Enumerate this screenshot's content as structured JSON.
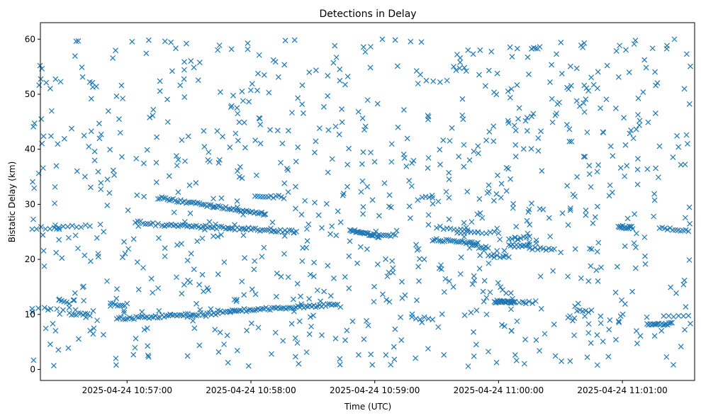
{
  "chart_data": {
    "type": "scatter",
    "title": "Detections in Delay",
    "xlabel": "Time (UTC)",
    "ylabel": "Bistatic Delay (km)",
    "x_ticks": [
      "2025-04-24 10:57:00",
      "2025-04-24 10:58:00",
      "2025-04-24 10:59:00",
      "2025-04-24 11:00:00",
      "2025-04-24 11:01:00"
    ],
    "y_ticks": [
      0,
      10,
      20,
      30,
      40,
      50,
      60
    ],
    "xlim": [
      "2025-04-24 10:56:18",
      "2025-04-24 11:01:35"
    ],
    "ylim": [
      -2,
      63
    ],
    "marker": "x",
    "color": "#1f77b4",
    "grid": false,
    "series": [
      {
        "tracks": [
          {
            "t_start": "2025-04-24 10:56:14",
            "t_end": "2025-04-24 10:56:35",
            "y_start": 11,
            "y_end": 11,
            "count": 8
          },
          {
            "t_start": "2025-04-24 10:56:27",
            "t_end": "2025-04-24 10:56:32",
            "y_start": 12.5,
            "y_end": 12.2,
            "count": 5
          },
          {
            "t_start": "2025-04-24 10:56:32",
            "t_end": "2025-04-24 10:56:42",
            "y_start": 10,
            "y_end": 10,
            "count": 10
          },
          {
            "t_start": "2025-04-24 10:56:14",
            "t_end": "2025-04-24 10:56:42",
            "y_start": 25.6,
            "y_end": 26.2,
            "count": 14
          },
          {
            "t_start": "2025-04-24 10:56:52",
            "t_end": "2025-04-24 10:57:00",
            "y_start": 11.8,
            "y_end": 11.8,
            "count": 8
          },
          {
            "t_start": "2025-04-24 10:56:55",
            "t_end": "2025-04-24 10:57:44",
            "y_start": 9.2,
            "y_end": 10.2,
            "count": 48
          },
          {
            "t_start": "2025-04-24 10:57:04",
            "t_end": "2025-04-24 10:57:15",
            "y_start": 26.8,
            "y_end": 26.3,
            "count": 10
          },
          {
            "t_start": "2025-04-24 10:57:15",
            "t_end": "2025-04-24 10:58:07",
            "y_start": 31.2,
            "y_end": 28.2,
            "count": 58
          },
          {
            "t_start": "2025-04-24 10:57:17",
            "t_end": "2025-04-24 10:58:22",
            "y_start": 26.3,
            "y_end": 25,
            "count": 60
          },
          {
            "t_start": "2025-04-24 10:58:02",
            "t_end": "2025-04-24 10:58:16",
            "y_start": 31.5,
            "y_end": 31.3,
            "count": 12
          },
          {
            "t_start": "2025-04-24 10:57:44",
            "t_end": "2025-04-24 10:57:50",
            "y_start": 10.5,
            "y_end": 10.5,
            "count": 6
          },
          {
            "t_start": "2025-04-24 10:57:50",
            "t_end": "2025-04-24 10:58:42",
            "y_start": 10.6,
            "y_end": 11.8,
            "count": 55
          },
          {
            "t_start": "2025-04-24 10:58:48",
            "t_end": "2025-04-24 10:59:02",
            "y_start": 25.3,
            "y_end": 24.2,
            "count": 25
          },
          {
            "t_start": "2025-04-24 10:59:02",
            "t_end": "2025-04-24 10:59:10",
            "y_start": 24.6,
            "y_end": 24.3,
            "count": 8
          },
          {
            "t_start": "2025-04-24 10:59:25",
            "t_end": "2025-04-24 10:59:35",
            "y_start": 52.5,
            "y_end": 52.3,
            "count": 4
          },
          {
            "t_start": "2025-04-24 10:59:18",
            "t_end": "2025-04-24 10:59:28",
            "y_start": 9.3,
            "y_end": 9.3,
            "count": 6
          },
          {
            "t_start": "2025-04-24 10:59:23",
            "t_end": "2025-04-24 10:59:28",
            "y_start": 31.3,
            "y_end": 31.3,
            "count": 4
          },
          {
            "t_start": "2025-04-24 10:59:30",
            "t_end": "2025-04-24 10:59:45",
            "y_start": 25.8,
            "y_end": 25.3,
            "count": 10
          },
          {
            "t_start": "2025-04-24 10:59:28",
            "t_end": "2025-04-24 10:59:50",
            "y_start": 23.6,
            "y_end": 23,
            "count": 24
          },
          {
            "t_start": "2025-04-24 10:59:40",
            "t_end": "2025-04-24 10:59:50",
            "y_start": 25,
            "y_end": 25,
            "count": 7
          },
          {
            "t_start": "2025-04-24 10:59:47",
            "t_end": "2025-04-24 10:59:55",
            "y_start": 22.5,
            "y_end": 22,
            "count": 8
          },
          {
            "t_start": "2025-04-24 10:59:50",
            "t_end": "2025-04-24 11:00:00",
            "y_start": 24.8,
            "y_end": 24.8,
            "count": 6
          },
          {
            "t_start": "2025-04-24 10:59:55",
            "t_end": "2025-04-24 11:00:05",
            "y_start": 20.5,
            "y_end": 20.5,
            "count": 8
          },
          {
            "t_start": "2025-04-24 10:59:58",
            "t_end": "2025-04-24 11:00:08",
            "y_start": 12.3,
            "y_end": 12.3,
            "count": 24
          },
          {
            "t_start": "2025-04-24 11:00:05",
            "t_end": "2025-04-24 11:00:15",
            "y_start": 22.5,
            "y_end": 22.5,
            "count": 12
          },
          {
            "t_start": "2025-04-24 11:00:05",
            "t_end": "2025-04-24 11:00:15",
            "y_start": 23.7,
            "y_end": 24,
            "count": 8
          },
          {
            "t_start": "2025-04-24 11:00:10",
            "t_end": "2025-04-24 11:00:18",
            "y_start": 12.2,
            "y_end": 12.2,
            "count": 6
          },
          {
            "t_start": "2025-04-24 11:00:15",
            "t_end": "2025-04-24 11:00:27",
            "y_start": 22,
            "y_end": 21.7,
            "count": 10
          },
          {
            "t_start": "2025-04-24 11:00:16",
            "t_end": "2025-04-24 11:00:20",
            "y_start": 58.5,
            "y_end": 58.5,
            "count": 5
          },
          {
            "t_start": "2025-04-24 11:00:38",
            "t_end": "2025-04-24 11:00:45",
            "y_start": 10.6,
            "y_end": 10.6,
            "count": 6
          },
          {
            "t_start": "2025-04-24 11:00:58",
            "t_end": "2025-04-24 11:01:05",
            "y_start": 26,
            "y_end": 25.7,
            "count": 14
          },
          {
            "t_start": "2025-04-24 11:01:12",
            "t_end": "2025-04-24 11:01:24",
            "y_start": 8.3,
            "y_end": 8.3,
            "count": 18
          },
          {
            "t_start": "2025-04-24 11:01:18",
            "t_end": "2025-04-24 11:01:32",
            "y_start": 25.6,
            "y_end": 25.2,
            "count": 12
          },
          {
            "t_start": "2025-04-24 11:01:20",
            "t_end": "2025-04-24 11:01:32",
            "y_start": 9.8,
            "y_end": 9.8,
            "count": 6
          }
        ],
        "noise": {
          "t_start": "2025-04-24 10:56:14",
          "t_end": "2025-04-24 11:01:33",
          "y_min": 0.5,
          "y_max": 60,
          "count": 900
        }
      }
    ]
  }
}
